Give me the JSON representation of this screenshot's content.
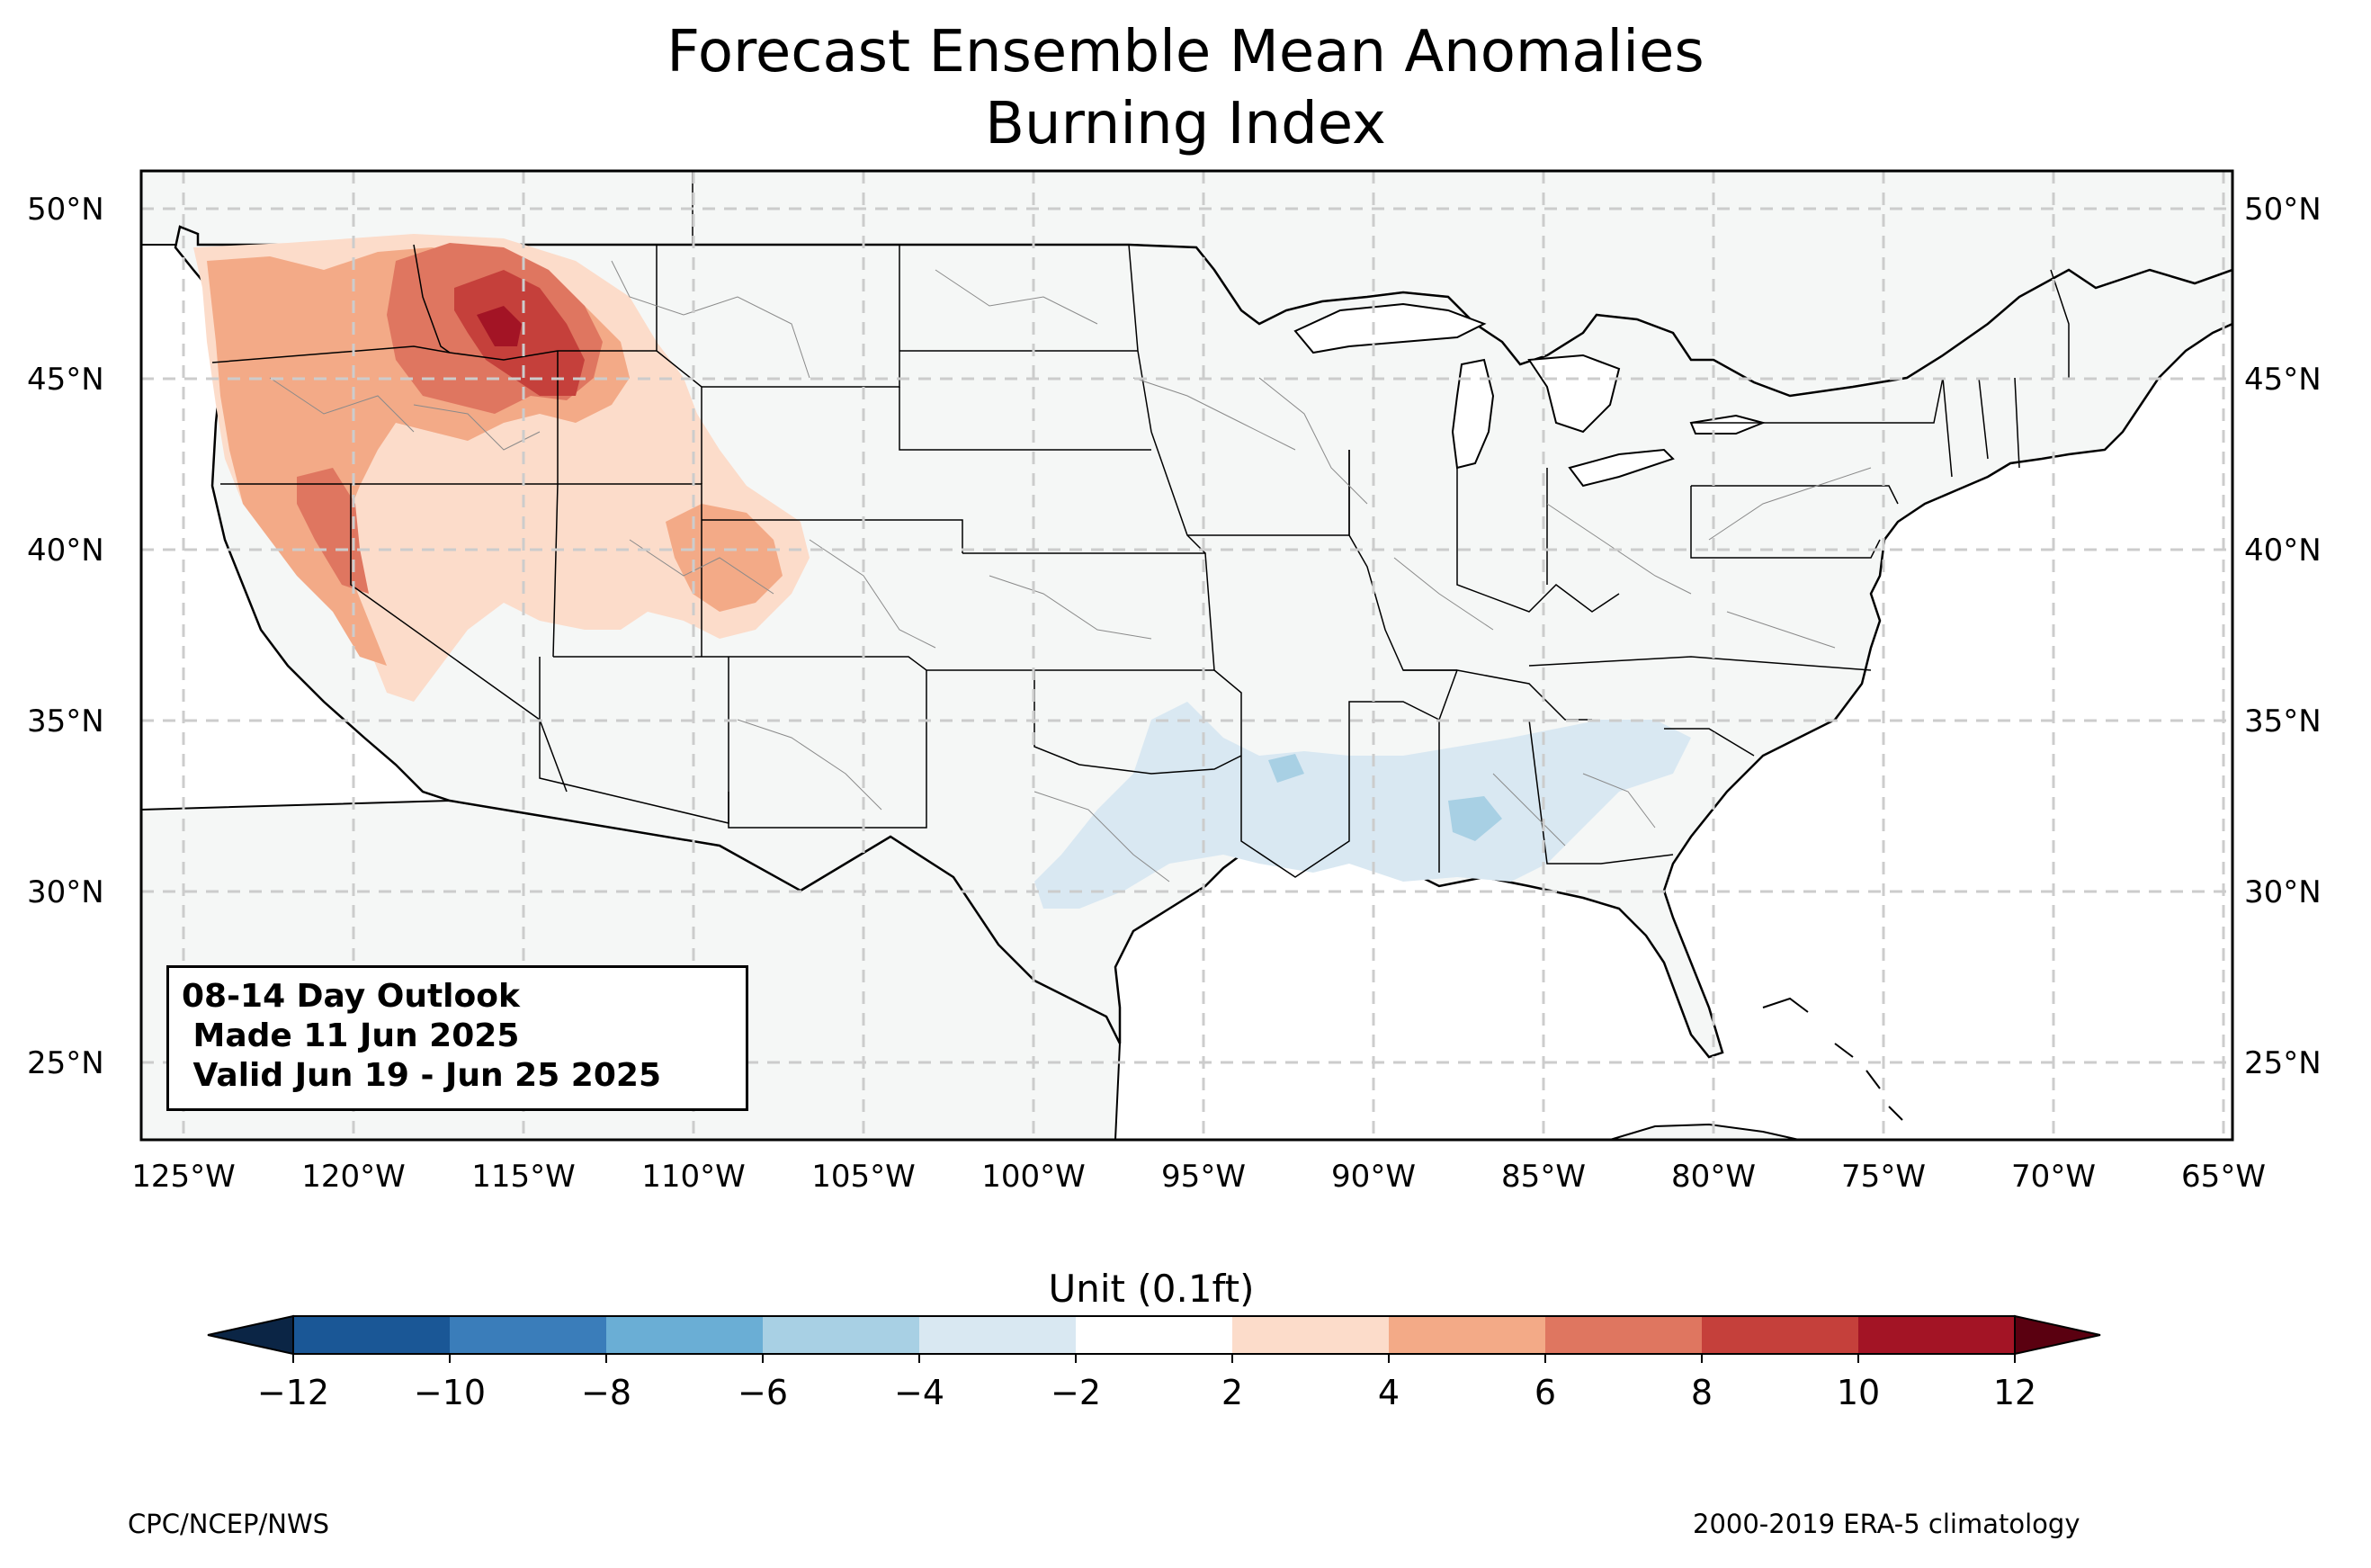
{
  "title": {
    "line1": "Forecast Ensemble Mean Anomalies",
    "line2": "Burning Index"
  },
  "lat_labels": [
    "50°N",
    "45°N",
    "40°N",
    "35°N",
    "30°N",
    "25°N"
  ],
  "lon_labels": [
    "125°W",
    "120°W",
    "115°W",
    "110°W",
    "105°W",
    "100°W",
    "95°W",
    "90°W",
    "85°W",
    "80°W",
    "75°W",
    "70°W",
    "65°W"
  ],
  "outlook": {
    "line1": "08-14 Day Outlook",
    "line2": " Made 11 Jun 2025",
    "line3": " Valid Jun 19 - Jun 25 2025"
  },
  "colorbar": {
    "label": "Unit (0.1ft)",
    "ticks": [
      "−12",
      "−10",
      "−8",
      "−6",
      "−4",
      "−2",
      "2",
      "4",
      "6",
      "8",
      "10",
      "12"
    ],
    "colors": [
      "#1a5796",
      "#3a7dba",
      "#6aaed5",
      "#a8d0e4",
      "#d9e8f2",
      "#ffffff",
      "#fcdcca",
      "#f3aa87",
      "#df7660",
      "#c5403b",
      "#a31425"
    ],
    "under_color": "#0b2545",
    "over_color": "#5a0010"
  },
  "map": {
    "land_color": "#f5f7f6",
    "anomaly_regions": [
      {
        "area": "Northern Rockies (Idaho / western Montana)",
        "sign": "positive",
        "peak_range": "8 to 10"
      },
      {
        "area": "Pacific Northwest interior (Washington / Oregon)",
        "sign": "positive",
        "peak_range": "4 to 8"
      },
      {
        "area": "Northern California / Sierra Nevada",
        "sign": "positive",
        "peak_range": "4 to 8"
      },
      {
        "area": "Northern Utah / southern Wyoming / Colorado",
        "sign": "positive",
        "peak_range": "2 to 6"
      },
      {
        "area": "Lower Mississippi Valley / Gulf Coast states",
        "sign": "negative",
        "peak_range": "-4 to -6"
      },
      {
        "area": "South Texas / Oklahoma / Georgia",
        "sign": "negative",
        "peak_range": "-2 to -4"
      }
    ]
  },
  "footer": {
    "credit": "CPC/NCEP/NWS",
    "climatology": "2000-2019 ERA-5 climatology"
  }
}
